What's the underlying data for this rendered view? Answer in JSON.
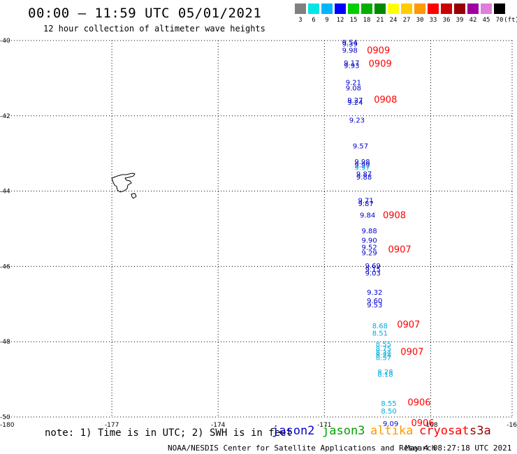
{
  "title": "00:00 – 11:59 UTC 05/01/2021",
  "subtitle": "12 hour collection of altimeter wave heights",
  "legend": {
    "unit": "(ft)",
    "items": [
      {
        "label": "3",
        "color": "#808080"
      },
      {
        "label": "6",
        "color": "#00e5e5"
      },
      {
        "label": "9",
        "color": "#00b4ff"
      },
      {
        "label": "12",
        "color": "#0000ff"
      },
      {
        "label": "15",
        "color": "#00d000"
      },
      {
        "label": "18",
        "color": "#00b000"
      },
      {
        "label": "21",
        "color": "#008a00"
      },
      {
        "label": "24",
        "color": "#ffff00"
      },
      {
        "label": "27",
        "color": "#ffcc00"
      },
      {
        "label": "30",
        "color": "#ff9900"
      },
      {
        "label": "33",
        "color": "#ff0000"
      },
      {
        "label": "36",
        "color": "#cc0000"
      },
      {
        "label": "39",
        "color": "#990000"
      },
      {
        "label": "42",
        "color": "#a000a0"
      },
      {
        "label": "45",
        "color": "#dd80dd"
      },
      {
        "label": "70",
        "color": "#000000"
      }
    ]
  },
  "axes": {
    "lon_ticks": [
      "-180",
      "-177",
      "-174",
      "-171",
      "-168",
      "-16"
    ],
    "lat_ticks": [
      "-40",
      "-42",
      "-44",
      "-46",
      "-48",
      "-50"
    ]
  },
  "observations": [
    {
      "lat": -40.04,
      "lon": -170.5,
      "text": "9.54",
      "color": "#0000cc"
    },
    {
      "lat": -40.08,
      "lon": -170.5,
      "text": "9.39",
      "color": "#0000cc"
    },
    {
      "lat": -40.25,
      "lon": -170.5,
      "text": "9.98",
      "color": "#0000cc"
    },
    {
      "lat": -40.58,
      "lon": -170.45,
      "text": "9.17",
      "color": "#0000cc"
    },
    {
      "lat": -40.66,
      "lon": -170.45,
      "text": "9.93",
      "color": "#0000cc"
    },
    {
      "lat": -41.1,
      "lon": -170.4,
      "text": "9.21",
      "color": "#0000cc"
    },
    {
      "lat": -41.25,
      "lon": -170.4,
      "text": "9.08",
      "color": "#0000cc"
    },
    {
      "lat": -41.58,
      "lon": -170.35,
      "text": "9.27",
      "color": "#0000cc"
    },
    {
      "lat": -41.63,
      "lon": -170.35,
      "text": "9.24",
      "color": "#0000cc"
    },
    {
      "lat": -42.11,
      "lon": -170.3,
      "text": "9.23",
      "color": "#0000cc"
    },
    {
      "lat": -42.79,
      "lon": -170.2,
      "text": "9.57",
      "color": "#0000cc"
    },
    {
      "lat": -43.21,
      "lon": -170.15,
      "text": "9.98",
      "color": "#0000cc"
    },
    {
      "lat": -43.29,
      "lon": -170.15,
      "text": "9.99",
      "color": "#0000cc"
    },
    {
      "lat": -43.37,
      "lon": -170.15,
      "text": "9.97",
      "color": "#00aadd"
    },
    {
      "lat": -43.53,
      "lon": -170.1,
      "text": "9.87",
      "color": "#0000cc"
    },
    {
      "lat": -43.62,
      "lon": -170.1,
      "text": "9.88",
      "color": "#0000cc"
    },
    {
      "lat": -44.24,
      "lon": -170.05,
      "text": "9.71",
      "color": "#0000cc"
    },
    {
      "lat": -44.32,
      "lon": -170.05,
      "text": "9.87",
      "color": "#0000cc"
    },
    {
      "lat": -44.63,
      "lon": -170.0,
      "text": "9.84",
      "color": "#0000cc"
    },
    {
      "lat": -45.05,
      "lon": -169.95,
      "text": "9.88",
      "color": "#0000cc"
    },
    {
      "lat": -45.3,
      "lon": -169.95,
      "text": "9.90",
      "color": "#0000cc"
    },
    {
      "lat": -45.48,
      "lon": -169.95,
      "text": "9.52",
      "color": "#0000cc"
    },
    {
      "lat": -45.63,
      "lon": -169.95,
      "text": "9.29",
      "color": "#0000cc"
    },
    {
      "lat": -45.97,
      "lon": -169.85,
      "text": "9.69",
      "color": "#0000cc"
    },
    {
      "lat": -46.07,
      "lon": -169.85,
      "text": "9.15",
      "color": "#0000cc"
    },
    {
      "lat": -46.17,
      "lon": -169.85,
      "text": "9.03",
      "color": "#0000cc"
    },
    {
      "lat": -46.68,
      "lon": -169.8,
      "text": "9.32",
      "color": "#0000cc"
    },
    {
      "lat": -46.9,
      "lon": -169.8,
      "text": "9.60",
      "color": "#0000cc"
    },
    {
      "lat": -47.01,
      "lon": -169.8,
      "text": "9.53",
      "color": "#0000cc"
    },
    {
      "lat": -47.57,
      "lon": -169.65,
      "text": "8.68",
      "color": "#00aadd"
    },
    {
      "lat": -47.76,
      "lon": -169.65,
      "text": "8.51",
      "color": "#00aadd"
    },
    {
      "lat": -48.05,
      "lon": -169.55,
      "text": "8.55",
      "color": "#00aadd"
    },
    {
      "lat": -48.17,
      "lon": -169.55,
      "text": "8.75",
      "color": "#00aadd"
    },
    {
      "lat": -48.27,
      "lon": -169.55,
      "text": "8.34",
      "color": "#00aadd"
    },
    {
      "lat": -48.35,
      "lon": -169.55,
      "text": "8.24",
      "color": "#00aadd"
    },
    {
      "lat": -48.41,
      "lon": -169.55,
      "text": "8.37",
      "color": "#00aadd"
    },
    {
      "lat": -48.79,
      "lon": -169.5,
      "text": "8.28",
      "color": "#00aadd"
    },
    {
      "lat": -48.86,
      "lon": -169.5,
      "text": "8.18",
      "color": "#00aadd"
    },
    {
      "lat": -49.63,
      "lon": -169.4,
      "text": "8.55",
      "color": "#00aadd"
    },
    {
      "lat": -49.83,
      "lon": -169.4,
      "text": "8.50",
      "color": "#00aadd"
    },
    {
      "lat": -50.17,
      "lon": -169.35,
      "text": "9.09",
      "color": "#0000cc"
    },
    {
      "lat": -40.27,
      "lon": -169.8,
      "text": "0909",
      "color": "#ff0000"
    },
    {
      "lat": -40.62,
      "lon": -169.75,
      "text": "0909",
      "color": "#ff0000"
    },
    {
      "lat": -41.58,
      "lon": -169.6,
      "text": "0908",
      "color": "#ff0000"
    },
    {
      "lat": -44.65,
      "lon": -169.35,
      "text": "0908",
      "color": "#ff0000"
    },
    {
      "lat": -45.56,
      "lon": -169.2,
      "text": "0907",
      "color": "#ff0000"
    },
    {
      "lat": -47.55,
      "lon": -168.95,
      "text": "0907",
      "color": "#ff0000"
    },
    {
      "lat": -48.27,
      "lon": -168.85,
      "text": "0907",
      "color": "#ff0000"
    },
    {
      "lat": -49.62,
      "lon": -168.65,
      "text": "0906",
      "color": "#ff0000"
    },
    {
      "lat": -50.17,
      "lon": -168.55,
      "text": "0906",
      "color": "#ff0000"
    }
  ],
  "note": "note: 1) Time is in UTC; 2) SWH is in feet",
  "satellites": [
    {
      "name": "jason2",
      "color": "#0000cc"
    },
    {
      "name": "jason3",
      "color": "#00a000"
    },
    {
      "name": "altika",
      "color": "#ff9900"
    },
    {
      "name": "cryosat",
      "color": "#ff0000"
    },
    {
      "name": "s3a",
      "color": "#990000"
    }
  ],
  "credit": "NOAA/NESDIS Center for Satellite Applications and Research",
  "credit_time": "May  4 08:27:18 UTC 2021"
}
